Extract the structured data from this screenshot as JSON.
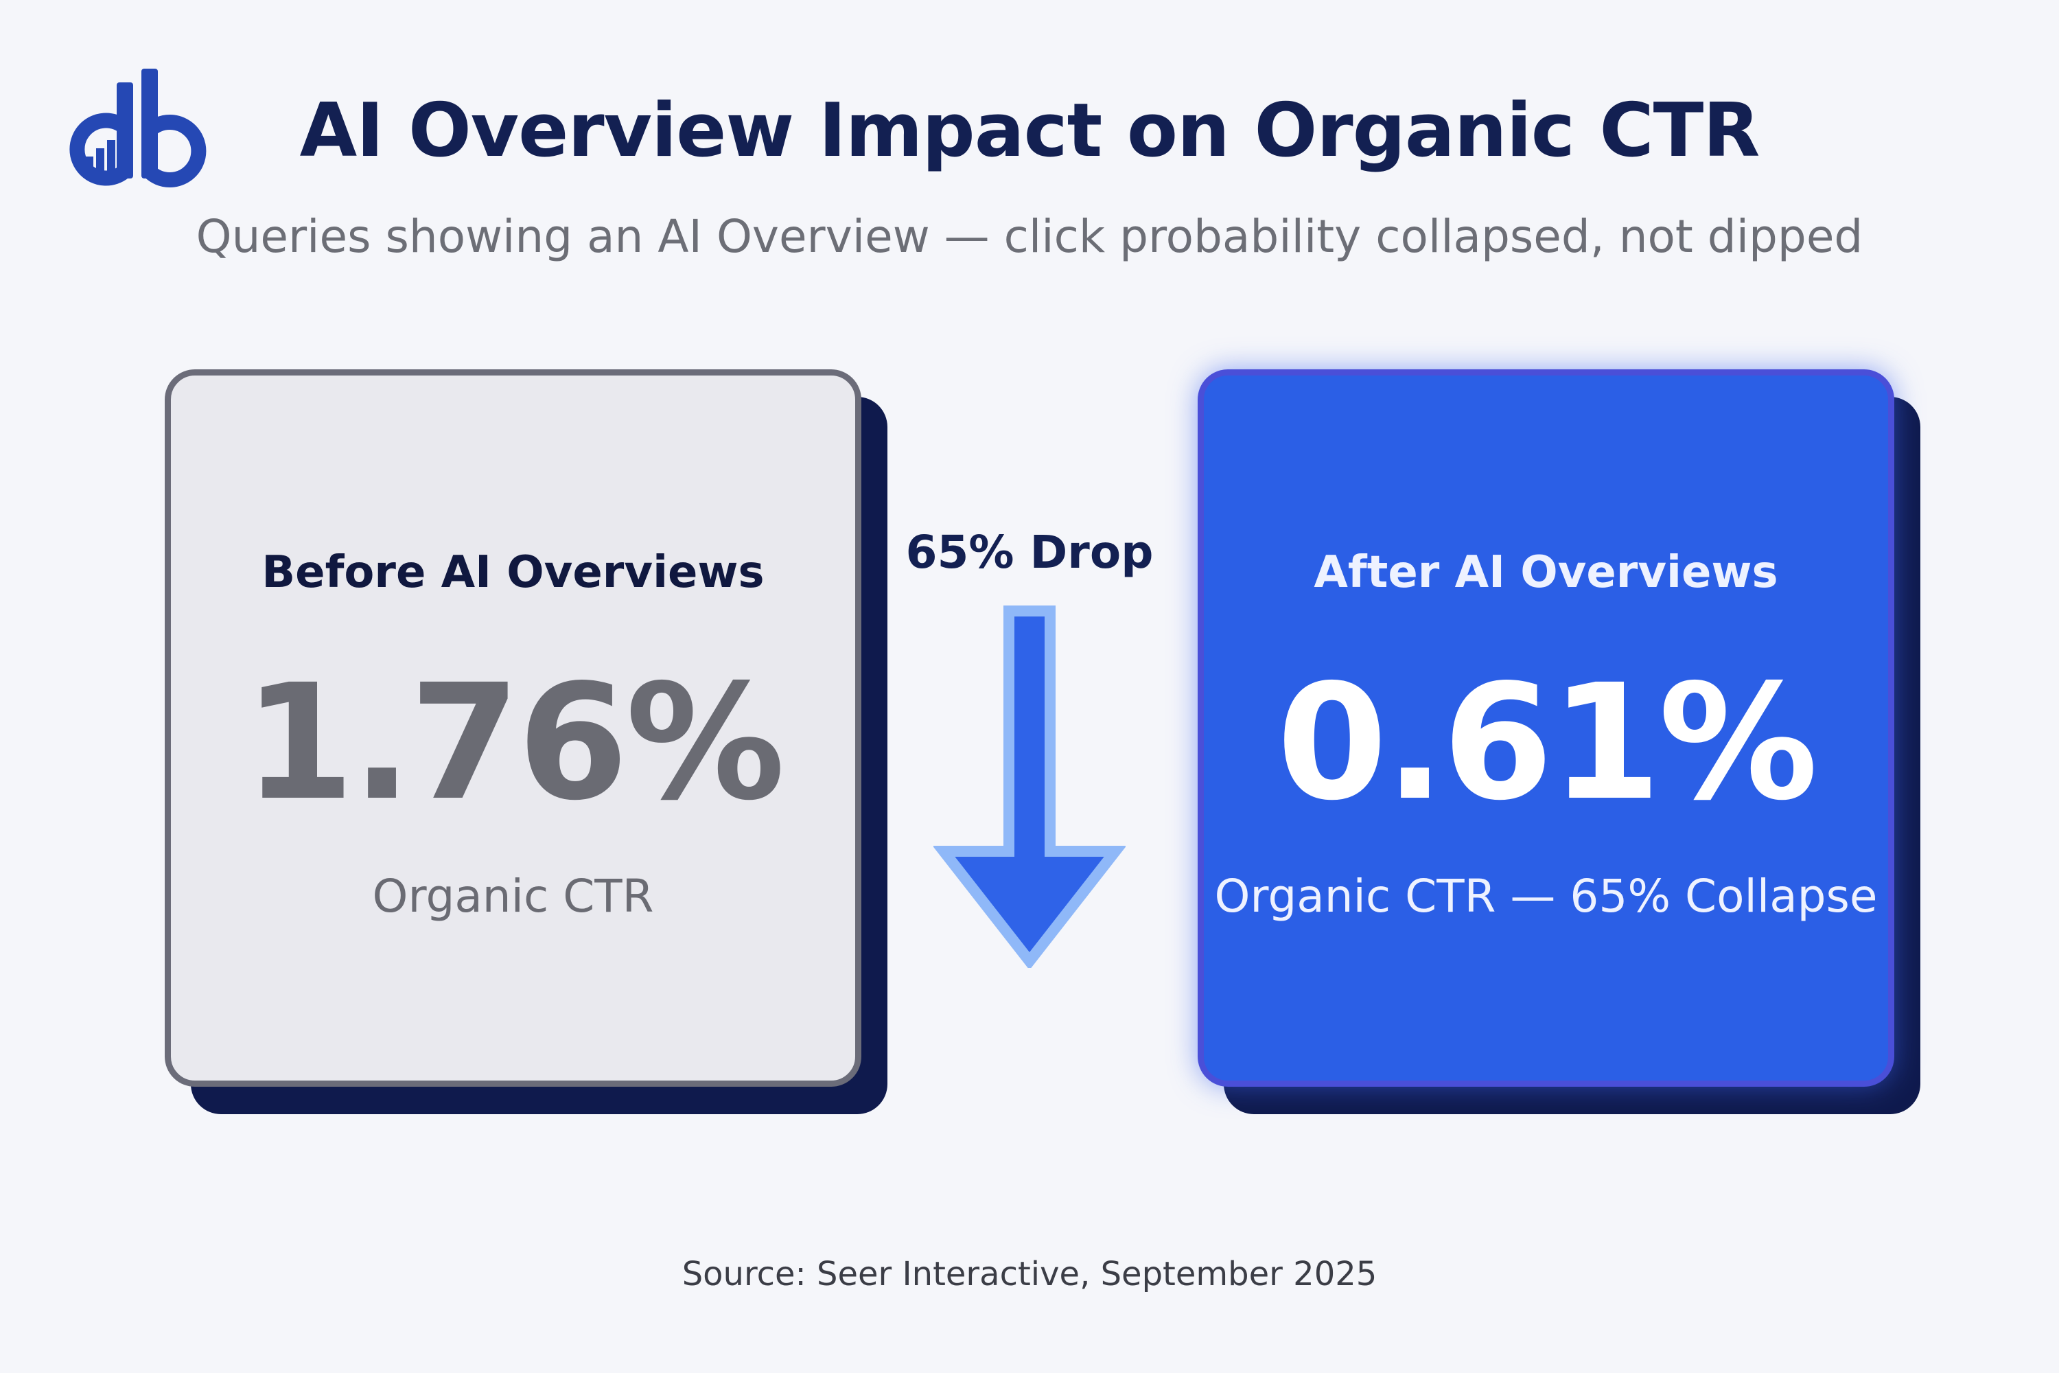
{
  "chart_data": {
    "type": "table",
    "title": "AI Overview Impact on Organic CTR",
    "subtitle": "Queries showing an AI Overview — click probability collapsed, not dipped",
    "categories": [
      "Before AI Overviews",
      "After AI Overviews"
    ],
    "values": [
      1.76,
      0.61
    ],
    "unit": "%",
    "cards": [
      {
        "label": "Before AI Overviews",
        "value_text": "1.76%",
        "sublabel": "Organic CTR"
      },
      {
        "label": "After AI Overviews",
        "value_text": "0.61%",
        "sublabel": "Organic CTR — 65% Collapse"
      }
    ],
    "change_label": "65% Drop",
    "change_percent": 65,
    "source": "Source: Seer Interactive, September 2025"
  },
  "colors": {
    "title": "#132052",
    "before_card": "#e9e9ee",
    "after_card": "#2b5fe6",
    "arrow": "#2f63e8",
    "shadow": "#0f1a4d"
  },
  "icons": {
    "logo": "db-logo-icon",
    "arrow": "down-arrow-icon"
  }
}
